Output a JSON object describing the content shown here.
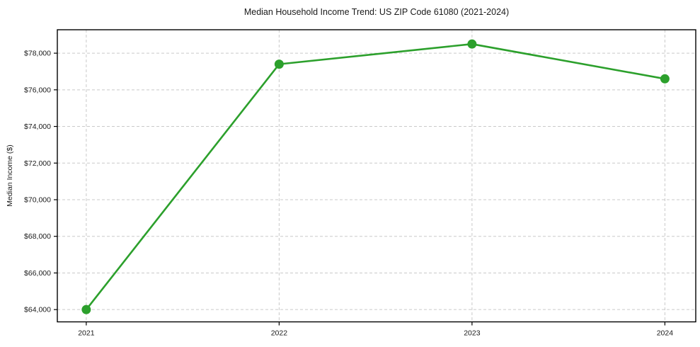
{
  "chart_data": {
    "type": "line",
    "title": "Median Household Income Trend: US ZIP Code 61080 (2021-2024)",
    "xlabel": "",
    "ylabel": "Median Income ($)",
    "x": [
      2021,
      2022,
      2023,
      2024
    ],
    "values": [
      64000,
      77400,
      78500,
      76600
    ],
    "xticks": [
      2021,
      2022,
      2023,
      2024
    ],
    "xtick_labels": [
      "2021",
      "2022",
      "2023",
      "2024"
    ],
    "yticks": [
      64000,
      66000,
      68000,
      70000,
      72000,
      74000,
      76000,
      78000
    ],
    "ytick_labels": [
      "$64,000",
      "$66,000",
      "$68,000",
      "$70,000",
      "$72,000",
      "$74,000",
      "$76,000",
      "$78,000"
    ],
    "xlim": [
      2020.85,
      2024.16
    ],
    "ylim": [
      63330,
      79280
    ],
    "grid": true,
    "grid_style": "dashed",
    "legend": "none",
    "line_color": "#2ca02c",
    "marker": "circle",
    "grid_color": "#c9c9c9",
    "axis_color": "#000000",
    "text_color": "#1a1a1a",
    "background": "#ffffff"
  }
}
